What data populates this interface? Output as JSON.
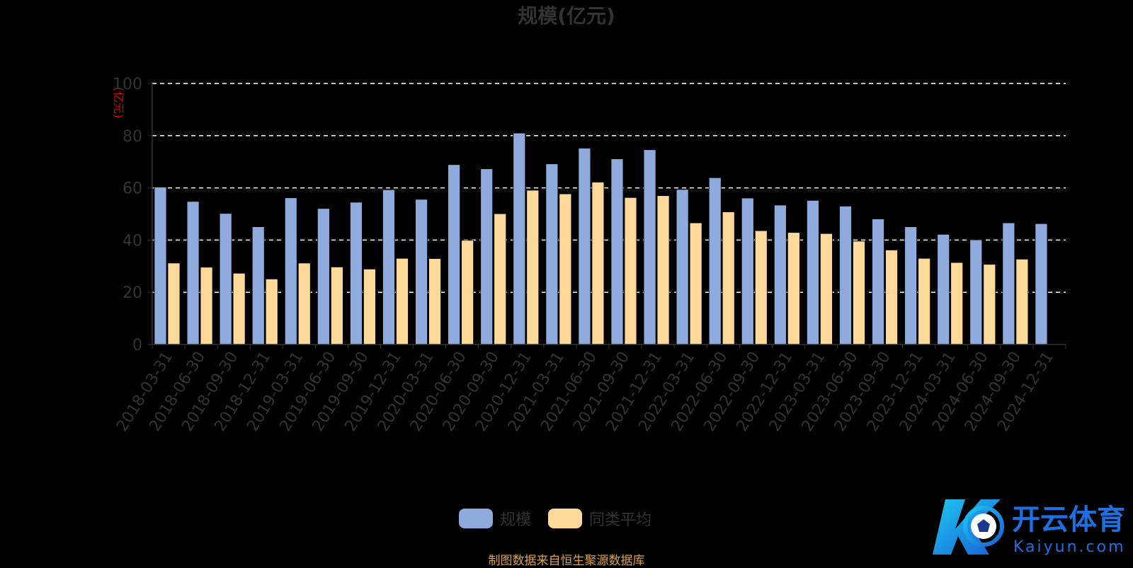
{
  "chart_data": {
    "type": "bar",
    "title": "规模(亿元)",
    "ylabel": "(亿元)",
    "xlabel": "",
    "ylim": [
      0,
      100
    ],
    "yticks": [
      0,
      20,
      40,
      60,
      80,
      100
    ],
    "grid": "dashed horizontal",
    "legend_position": "bottom-center",
    "categories": [
      "2018-03-31",
      "2018-06-30",
      "2018-09-30",
      "2018-12-31",
      "2019-03-31",
      "2019-06-30",
      "2019-09-30",
      "2019-12-31",
      "2020-03-31",
      "2020-06-30",
      "2020-09-30",
      "2020-12-31",
      "2021-03-31",
      "2021-06-30",
      "2021-09-30",
      "2021-12-31",
      "2022-03-31",
      "2022-06-30",
      "2022-09-30",
      "2022-12-31",
      "2023-03-31",
      "2023-06-30",
      "2023-09-30",
      "2023-12-31",
      "2024-03-31",
      "2024-06-30",
      "2024-09-30",
      "2024-12-31"
    ],
    "series": [
      {
        "name": "规模",
        "color": "#8faadc",
        "values": [
          60.3,
          54.8,
          50.2,
          45.1,
          56.2,
          52.1,
          54.5,
          59.3,
          55.6,
          68.9,
          67.3,
          81.0,
          69.2,
          75.2,
          71.1,
          74.6,
          59.4,
          63.9,
          56.1,
          53.4,
          55.2,
          53.0,
          48.1,
          45.1,
          42.2,
          40.1,
          46.6,
          46.3
        ]
      },
      {
        "name": "同类平均",
        "color": "#ffd999",
        "values": [
          31.2,
          29.6,
          27.3,
          25.1,
          31.2,
          29.7,
          28.9,
          33.0,
          32.9,
          39.9,
          50.1,
          59.1,
          57.7,
          62.2,
          56.3,
          57.0,
          46.6,
          50.8,
          43.6,
          42.9,
          42.5,
          39.6,
          36.2,
          33.0,
          31.4,
          30.7,
          32.7,
          null
        ]
      }
    ]
  },
  "source_note": "制图数据来自恒生聚源数据库",
  "watermark": {
    "brand": "开云体育",
    "url": "Kaiyun.com"
  }
}
